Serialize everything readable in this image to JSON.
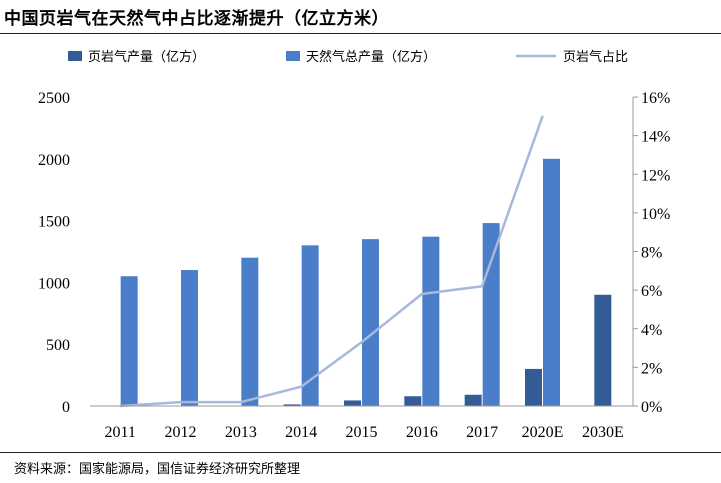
{
  "title": "中国页岩气在天然气中占比逐渐提升（亿立方米）",
  "source": "资料来源：国家能源局，国信证券经济研究所整理",
  "colors": {
    "shale": "#335b96",
    "total": "#4a7ec8",
    "share": "#a6b8dc",
    "axis": "#999999"
  },
  "chart_data": {
    "type": "bar",
    "categories": [
      "2011",
      "2012",
      "2013",
      "2014",
      "2015",
      "2016",
      "2017",
      "2020E",
      "2030E"
    ],
    "series": [
      {
        "name": "页岩气产量（亿方）",
        "kind": "bar",
        "axis": "left",
        "values": [
          0,
          3,
          2,
          13,
          45,
          79,
          91,
          300,
          null
        ]
      },
      {
        "name": "天然气总产量（亿方）",
        "kind": "bar",
        "axis": "left",
        "values": [
          1050,
          1100,
          1200,
          1300,
          1350,
          1370,
          1480,
          2000,
          900
        ]
      },
      {
        "name": "页岩气占比",
        "kind": "line",
        "axis": "right",
        "values": [
          0,
          0.2,
          0.2,
          1.0,
          3.3,
          5.8,
          6.2,
          15.0,
          null
        ]
      }
    ],
    "left_axis": {
      "min": 0,
      "max": 2500,
      "ticks": [
        "0",
        "500",
        "1000",
        "1500",
        "2000",
        "2500"
      ]
    },
    "right_axis": {
      "min": 0,
      "max": 16,
      "ticks": [
        "0%",
        "2%",
        "4%",
        "6%",
        "8%",
        "10%",
        "12%",
        "14%",
        "16%"
      ]
    },
    "grid": false,
    "legend_position": "top"
  }
}
